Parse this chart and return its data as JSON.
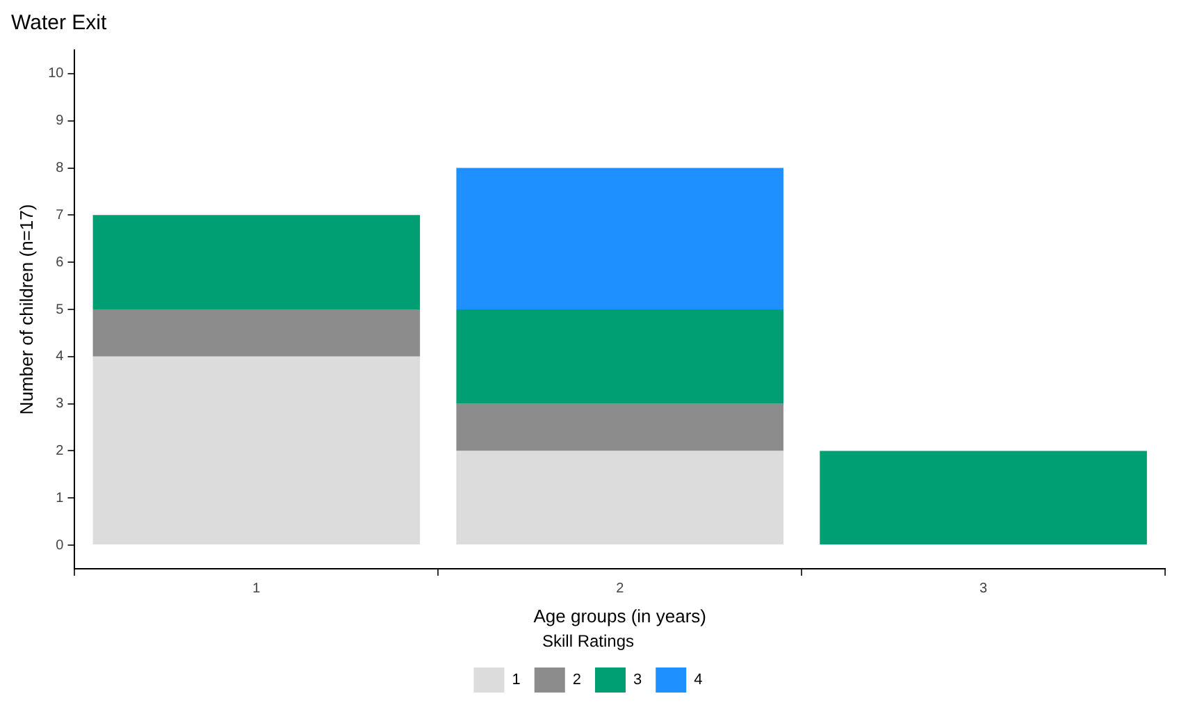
{
  "chart_data": {
    "type": "bar",
    "title": "Water Exit",
    "xlabel": "Age groups (in years)",
    "ylabel": "Number of children (n=17)",
    "legend_title": "Skill Ratings",
    "categories": [
      "1",
      "2",
      "3"
    ],
    "stacked": true,
    "series": [
      {
        "name": "1",
        "color": "#dcdcdc",
        "values": [
          4,
          2,
          null
        ]
      },
      {
        "name": "2",
        "color": "#8c8c8c",
        "values": [
          1,
          1,
          null
        ]
      },
      {
        "name": "3",
        "color": "#009e73",
        "values": [
          2,
          2,
          2
        ]
      },
      {
        "name": "4",
        "color": "#1e90ff",
        "values": [
          null,
          3,
          null
        ]
      }
    ],
    "ylim": [
      -0.5,
      10.5
    ],
    "yticks": [
      0,
      1,
      2,
      3,
      4,
      5,
      6,
      7,
      8,
      9,
      10
    ],
    "grid": false,
    "legend": "bottom"
  }
}
